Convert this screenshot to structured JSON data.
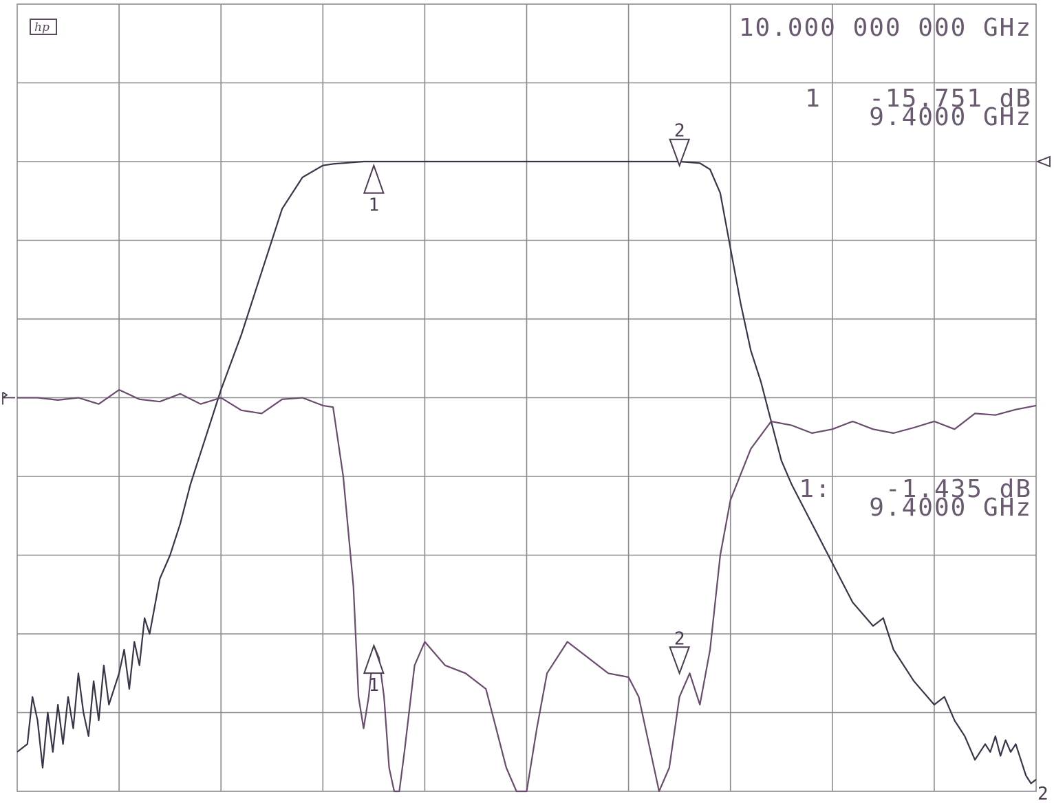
{
  "header": {
    "logo": "hp",
    "center_frequency": "10.000 000 000 GHz"
  },
  "readouts": {
    "trace1": {
      "label": "1",
      "value": "-15.751 dB",
      "frequency": "9.4000 GHz"
    },
    "trace2": {
      "label": "1:",
      "value": "-1.435 dB",
      "frequency": "9.4000 GHz"
    }
  },
  "colors": {
    "grid": "#8a8a90",
    "transmission_trace": "#3a3448",
    "reflection_trace": "#6a4a6e",
    "text": "#6a5a70"
  },
  "chart_data": {
    "type": "line",
    "title": "",
    "xlabel": "",
    "ylabel": "",
    "grid": true,
    "grid_divisions": {
      "x": 10,
      "y": 10
    },
    "xlim": [
      0,
      10
    ],
    "ylim": [
      0,
      10
    ],
    "reference_markers": [
      {
        "series": "transmission",
        "symbol": "▷",
        "y": 8
      },
      {
        "series": "reflection",
        "symbol": "1",
        "y": 5
      },
      {
        "series": "reflection",
        "symbol": "2",
        "y": 0
      }
    ],
    "markers": [
      {
        "label": "1",
        "series": "transmission",
        "x": 3.5,
        "y": 7.95,
        "pointing": "up"
      },
      {
        "label": "2",
        "series": "transmission",
        "x": 6.5,
        "y": 7.95,
        "pointing": "down"
      },
      {
        "label": "1",
        "series": "reflection",
        "x": 3.5,
        "y": 1.85,
        "pointing": "up"
      },
      {
        "label": "2",
        "series": "reflection",
        "x": 6.5,
        "y": 1.5,
        "pointing": "down"
      }
    ],
    "series": [
      {
        "id": "transmission",
        "x": [
          0,
          0.1,
          0.15,
          0.2,
          0.25,
          0.3,
          0.35,
          0.4,
          0.45,
          0.5,
          0.55,
          0.6,
          0.65,
          0.7,
          0.75,
          0.8,
          0.85,
          0.9,
          0.95,
          1.0,
          1.05,
          1.1,
          1.15,
          1.2,
          1.25,
          1.3,
          1.4,
          1.5,
          1.6,
          1.7,
          1.8,
          2.0,
          2.2,
          2.4,
          2.6,
          2.8,
          3.0,
          3.1,
          3.2,
          3.3,
          3.4,
          3.5,
          3.6,
          3.8,
          4.0,
          4.5,
          5.0,
          5.5,
          6.0,
          6.3,
          6.5,
          6.7,
          6.8,
          6.9,
          7.0,
          7.1,
          7.2,
          7.3,
          7.4,
          7.5,
          7.6,
          7.8,
          8.0,
          8.2,
          8.4,
          8.5,
          8.6,
          8.8,
          9.0,
          9.1,
          9.2,
          9.3,
          9.4,
          9.5,
          9.55,
          9.6,
          9.65,
          9.7,
          9.75,
          9.8,
          9.85,
          9.9,
          9.95,
          10.0
        ],
        "y": [
          0.5,
          0.6,
          1.2,
          0.9,
          0.3,
          1.0,
          0.5,
          1.1,
          0.6,
          1.2,
          0.8,
          1.5,
          1.0,
          0.7,
          1.4,
          0.9,
          1.6,
          1.1,
          1.3,
          1.5,
          1.8,
          1.3,
          1.9,
          1.6,
          2.2,
          2.0,
          2.7,
          3.0,
          3.4,
          3.9,
          4.3,
          5.1,
          5.8,
          6.6,
          7.4,
          7.8,
          7.95,
          7.97,
          7.98,
          7.99,
          8.0,
          8.0,
          8.0,
          8.0,
          8.0,
          8.0,
          8.0,
          8.0,
          8.0,
          8.0,
          8.0,
          7.98,
          7.9,
          7.6,
          6.9,
          6.2,
          5.6,
          5.2,
          4.7,
          4.2,
          3.9,
          3.4,
          2.9,
          2.4,
          2.1,
          2.2,
          1.8,
          1.4,
          1.1,
          1.2,
          0.9,
          0.7,
          0.4,
          0.6,
          0.5,
          0.7,
          0.45,
          0.65,
          0.5,
          0.6,
          0.4,
          0.2,
          0.1,
          0.15
        ]
      },
      {
        "id": "reflection",
        "x": [
          0,
          0.2,
          0.4,
          0.6,
          0.8,
          1.0,
          1.2,
          1.4,
          1.6,
          1.8,
          2.0,
          2.2,
          2.4,
          2.6,
          2.8,
          3.0,
          3.1,
          3.2,
          3.3,
          3.35,
          3.4,
          3.45,
          3.5,
          3.55,
          3.6,
          3.65,
          3.7,
          3.75,
          3.8,
          3.9,
          4.0,
          4.2,
          4.4,
          4.6,
          4.8,
          4.9,
          5.0,
          5.1,
          5.2,
          5.4,
          5.6,
          5.8,
          6.0,
          6.1,
          6.2,
          6.3,
          6.4,
          6.5,
          6.6,
          6.7,
          6.8,
          6.9,
          7.0,
          7.2,
          7.4,
          7.6,
          7.8,
          8.0,
          8.2,
          8.4,
          8.6,
          8.8,
          9.0,
          9.2,
          9.4,
          9.6,
          9.8,
          10.0
        ],
        "y": [
          5.0,
          5.0,
          4.97,
          5.0,
          4.92,
          5.1,
          4.98,
          4.95,
          5.05,
          4.92,
          5.0,
          4.84,
          4.8,
          4.98,
          5.0,
          4.9,
          4.88,
          4.0,
          2.6,
          1.2,
          0.8,
          1.2,
          1.85,
          1.7,
          1.2,
          0.3,
          0.0,
          0.0,
          0.5,
          1.6,
          1.9,
          1.6,
          1.5,
          1.3,
          0.3,
          0.0,
          0.0,
          0.8,
          1.5,
          1.9,
          1.7,
          1.5,
          1.45,
          1.2,
          0.6,
          0.0,
          0.3,
          1.2,
          1.5,
          1.1,
          1.8,
          3.0,
          3.7,
          4.35,
          4.7,
          4.65,
          4.55,
          4.6,
          4.7,
          4.6,
          4.55,
          4.62,
          4.7,
          4.6,
          4.8,
          4.78,
          4.85,
          4.9
        ]
      }
    ]
  }
}
